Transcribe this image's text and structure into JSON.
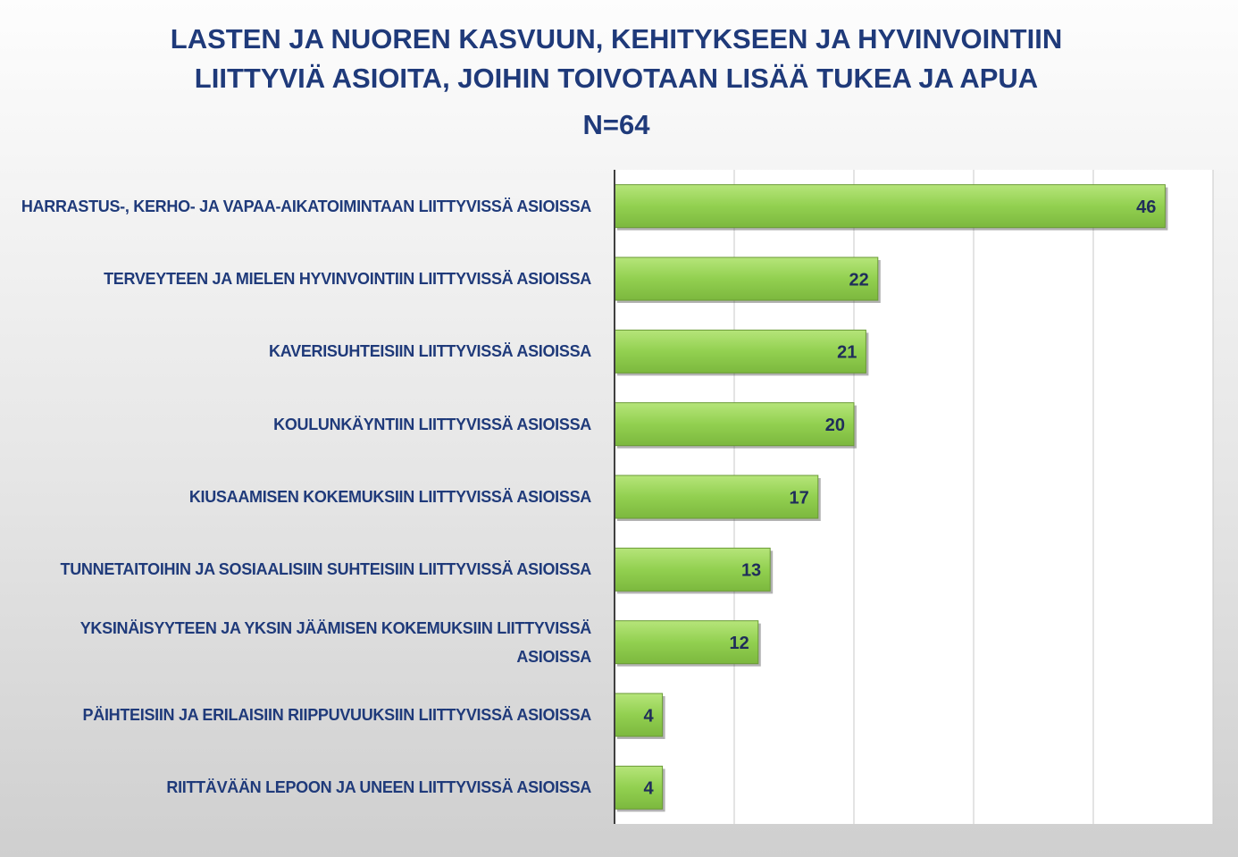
{
  "chart_data": {
    "type": "barh",
    "title": "LASTEN JA NUOREN KASVUUN, KEHITYKSEEN JA HYVINVOINTIIN LIITTYVIÄ ASIOITA, JOIHIN TOIVOTAAN LISÄÄ TUKEA JA APUA",
    "subtitle": "N=64",
    "categories": [
      "HARRASTUS-, KERHO- JA VAPAA-AIKATOIMINTAAN LIITTYVISSÄ ASIOISSA",
      "TERVEYTEEN JA MIELEN HYVINVOINTIIN LIITTYVISSÄ ASIOISSA",
      "KAVERISUHTEISIIN LIITTYVISSÄ ASIOISSA",
      "KOULUNKÄYNTIIN LIITTYVISSÄ ASIOISSA",
      "KIUSAAMISEN KOKEMUKSIIN LIITTYVISSÄ ASIOISSA",
      "TUNNETAITOIHIN JA SOSIAALISIIN SUHTEISIIN LIITTYVISSÄ ASIOISSA",
      "YKSINÄISYYTEEN JA YKSIN JÄÄMISEN KOKEMUKSIIN LIITTYVISSÄ ASIOISSA",
      "PÄIHTEISIIN JA ERILAISIIN RIIPPUVUUKSIIN LIITTYVISSÄ ASIOISSA",
      "RIITTÄVÄÄN LEPOON JA UNEEN LIITTYVISSÄ ASIOISSA"
    ],
    "values": [
      46,
      22,
      21,
      20,
      17,
      13,
      12,
      4,
      4
    ],
    "color": "#92d050",
    "xlim": [
      0,
      50
    ],
    "xticks": [
      0,
      10,
      20,
      30,
      40,
      50
    ],
    "grid": true
  }
}
